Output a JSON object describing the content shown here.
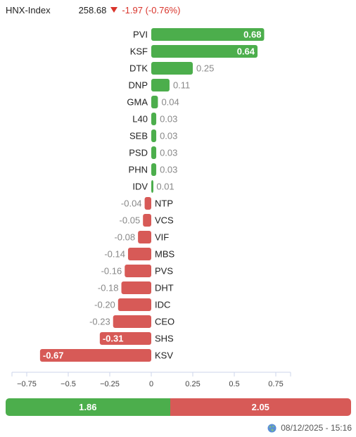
{
  "header": {
    "index_name": "HNX-Index",
    "index_value": "258.68",
    "change": "-1.97 (-0.76%)",
    "direction_icon": "down-triangle-icon",
    "change_color": "#d9342b"
  },
  "chart_data": {
    "type": "bar",
    "orientation": "horizontal",
    "categories": [
      "PVI",
      "KSF",
      "DTK",
      "DNP",
      "GMA",
      "L40",
      "SEB",
      "PSD",
      "PHN",
      "IDV",
      "NTP",
      "VCS",
      "VIF",
      "MBS",
      "PVS",
      "DHT",
      "IDC",
      "CEO",
      "SHS",
      "KSV"
    ],
    "values": [
      0.68,
      0.64,
      0.25,
      0.11,
      0.04,
      0.03,
      0.03,
      0.03,
      0.03,
      0.01,
      -0.04,
      -0.05,
      -0.08,
      -0.14,
      -0.16,
      -0.18,
      -0.2,
      -0.23,
      -0.31,
      -0.67
    ],
    "value_labels": [
      "0.68",
      "0.64",
      "0.25",
      "0.11",
      "0.04",
      "0.03",
      "0.03",
      "0.03",
      "0.03",
      "0.01",
      "-0.04",
      "-0.05",
      "-0.08",
      "-0.14",
      "-0.16",
      "-0.18",
      "-0.20",
      "-0.23",
      "-0.31",
      "-0.67"
    ],
    "x_ticks": [
      -0.75,
      -0.5,
      -0.25,
      0,
      0.25,
      0.5,
      0.75
    ],
    "x_tick_labels": [
      "−0.75",
      "−0.5",
      "−0.25",
      "0",
      "0.25",
      "0.5",
      "0.75"
    ],
    "xlim": [
      -0.78,
      0.78
    ],
    "grid": false,
    "positive_color": "#4cae4c",
    "negative_color": "#d75a57",
    "title": "",
    "xlabel": "",
    "ylabel": ""
  },
  "summary": {
    "up_value": 1.86,
    "up_label": "1.86",
    "down_value": 2.05,
    "down_label": "2.05"
  },
  "timestamp": {
    "icon": "globe-icon",
    "text": "08/12/2025 - 15:16"
  }
}
